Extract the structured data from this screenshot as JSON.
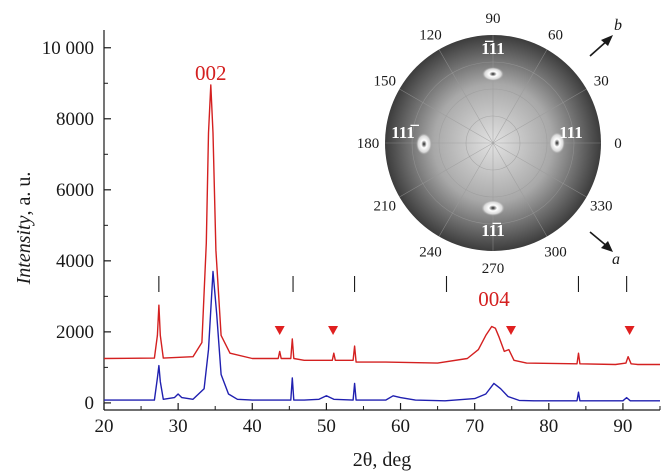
{
  "chart_data": {
    "type": "line",
    "title": "",
    "xlabel": "2θ, deg",
    "ylabel_italic": "Intensity",
    "ylabel_rest": ", a. u.",
    "xlim": [
      20,
      95
    ],
    "ylim": [
      -200,
      10500
    ],
    "x_ticks": [
      20,
      30,
      40,
      50,
      60,
      70,
      80,
      90
    ],
    "y_ticks": [
      0,
      2000,
      4000,
      6000,
      8000,
      10000
    ],
    "y_tick_labels": [
      "0",
      "2000",
      "4000",
      "6000",
      "8000",
      "10 000"
    ],
    "series": [
      {
        "color": "#d42020",
        "x": [
          20,
          26.8,
          27.2,
          27.4,
          27.6,
          28,
          32,
          33.2,
          33.8,
          34.1,
          34.4,
          34.7,
          35.1,
          35.8,
          37,
          40,
          43.5,
          43.7,
          43.9,
          45.2,
          45.4,
          45.6,
          47,
          50.8,
          51,
          51.2,
          53.6,
          53.8,
          54,
          58,
          65,
          69,
          70.5,
          71.5,
          72.3,
          72.8,
          73.3,
          74,
          74.6,
          75.3,
          77,
          83.8,
          84,
          84.2,
          89,
          90.4,
          90.7,
          91.1,
          92,
          95
        ],
        "y": [
          1250,
          1260,
          1900,
          2750,
          1900,
          1260,
          1300,
          1700,
          4500,
          7600,
          8950,
          7600,
          4300,
          1900,
          1400,
          1250,
          1250,
          1450,
          1250,
          1250,
          1800,
          1250,
          1200,
          1200,
          1400,
          1200,
          1200,
          1600,
          1150,
          1150,
          1120,
          1250,
          1500,
          1900,
          2150,
          2100,
          1850,
          1450,
          1500,
          1200,
          1120,
          1100,
          1400,
          1100,
          1080,
          1120,
          1300,
          1100,
          1080,
          1080
        ]
      },
      {
        "color": "#2020b0",
        "x": [
          20,
          26.8,
          27.2,
          27.4,
          27.6,
          28,
          29.5,
          30,
          30.5,
          32,
          33.5,
          34.1,
          34.7,
          35.2,
          35.8,
          36.8,
          38,
          40,
          45.2,
          45.4,
          45.6,
          47,
          49,
          50,
          51,
          53.6,
          53.8,
          54,
          58,
          59,
          60,
          62,
          66,
          70,
          71.5,
          72.6,
          73.5,
          74.5,
          76,
          78,
          83.8,
          84,
          84.2,
          90,
          90.5,
          91,
          95
        ],
        "y": [
          80,
          80,
          700,
          1050,
          600,
          100,
          150,
          250,
          150,
          100,
          400,
          1500,
          3700,
          2500,
          800,
          250,
          100,
          80,
          80,
          700,
          80,
          80,
          100,
          200,
          100,
          80,
          550,
          80,
          80,
          200,
          150,
          80,
          60,
          120,
          250,
          550,
          400,
          180,
          70,
          60,
          60,
          300,
          60,
          60,
          150,
          60,
          60
        ]
      }
    ],
    "reference_lines_x": [
      27.4,
      45.5,
      53.8,
      66.2,
      84.0,
      90.5
    ],
    "triangle_markers_x": [
      43.7,
      50.9,
      74.9,
      90.9
    ],
    "annotations": [
      {
        "text": "002",
        "x": 34.4
      },
      {
        "text": "004",
        "x": 72.6
      }
    ],
    "inset_pole_figure": {
      "angle_labels": [
        "90",
        "60",
        "30",
        "0",
        "330",
        "300",
        "270",
        "240",
        "210",
        "180",
        "150",
        "120"
      ],
      "angles_deg": [
        90,
        60,
        30,
        0,
        330,
        300,
        270,
        240,
        210,
        180,
        150,
        120
      ],
      "poles": [
        {
          "label_main": "11",
          "label_bar_prefix": "1",
          "label_suffix": "",
          "position": "top"
        },
        {
          "label_main": "111",
          "position": "right"
        },
        {
          "label_main": "1",
          "label_bar_part": "1",
          "label_suffix": "1",
          "position": "bottom"
        },
        {
          "label_main": "11",
          "label_bar_suffix": "1",
          "position": "left"
        }
      ],
      "axis_b": "b",
      "axis_a": "a",
      "colors": {
        "outer": "#3a3a3a",
        "inner": "#dcdcdc",
        "pole": "#ffffff"
      }
    }
  }
}
